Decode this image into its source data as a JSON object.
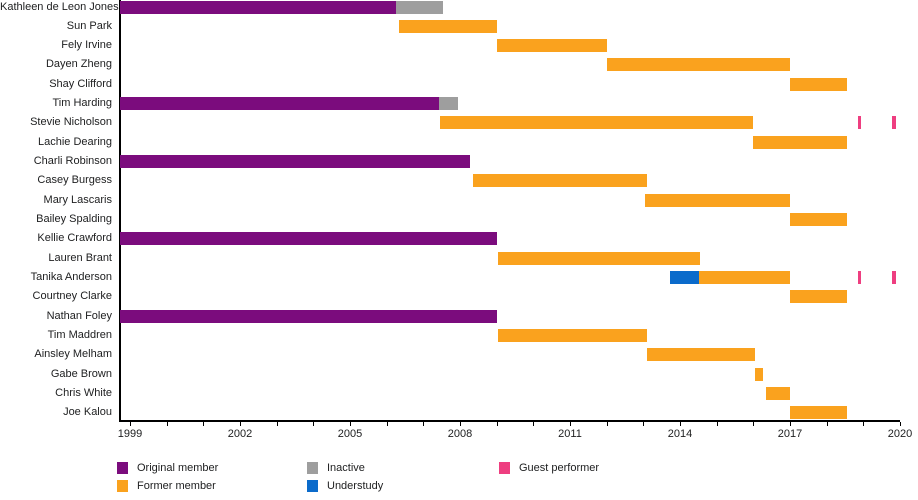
{
  "chart_data": {
    "type": "timeline",
    "title": "",
    "x_axis": {
      "min_year": 1998.73,
      "max_year": 2021.0,
      "tick_interval_years": 1,
      "labeled_ticks": [
        1999,
        2002,
        2005,
        2008,
        2011,
        2014,
        2017,
        2020
      ],
      "grid": false
    },
    "legend": [
      {
        "id": "original",
        "label": "Original member",
        "color": "#7b0c7d",
        "column": 0,
        "row": 0
      },
      {
        "id": "former",
        "label": "Former member",
        "color": "#faa21e",
        "column": 0,
        "row": 1
      },
      {
        "id": "inactive",
        "label": "Inactive",
        "color": "#9e9e9e",
        "column": 1,
        "row": 0
      },
      {
        "id": "understudy",
        "label": "Understudy",
        "color": "#0b6bcb",
        "column": 1,
        "row": 1
      },
      {
        "id": "guest",
        "label": "Guest performer",
        "color": "#ee3e80",
        "column": 2,
        "row": 0
      }
    ],
    "colors": {
      "original": "#7b0c7d",
      "former": "#faa21e",
      "inactive": "#9e9e9e",
      "understudy": "#0b6bcb",
      "guest": "#ee3e80"
    },
    "members": [
      {
        "name": "Kathleen de Leon Jones",
        "segments": [
          {
            "type": "original",
            "start": 1998.73,
            "end": 2006.25
          },
          {
            "type": "inactive",
            "start": 2006.25,
            "end": 2007.54
          }
        ]
      },
      {
        "name": "Sun Park",
        "segments": [
          {
            "type": "former",
            "start": 2006.33,
            "end": 2009.0
          }
        ]
      },
      {
        "name": "Fely Irvine",
        "segments": [
          {
            "type": "former",
            "start": 2009.0,
            "end": 2012.0
          }
        ]
      },
      {
        "name": "Dayen Zheng",
        "segments": [
          {
            "type": "former",
            "start": 2012.0,
            "end": 2017.0
          }
        ]
      },
      {
        "name": "Shay Clifford",
        "segments": [
          {
            "type": "former",
            "start": 2017.0,
            "end": 2018.55
          }
        ]
      },
      {
        "name": "Tim Harding",
        "segments": [
          {
            "type": "original",
            "start": 1998.73,
            "end": 2007.43
          },
          {
            "type": "inactive",
            "start": 2007.43,
            "end": 2007.95
          }
        ]
      },
      {
        "name": "Stevie Nicholson",
        "segments": [
          {
            "type": "former",
            "start": 2007.45,
            "end": 2016.0
          },
          {
            "type": "guest",
            "start": 2018.86,
            "end": 2018.95
          },
          {
            "type": "guest",
            "start": 2019.79,
            "end": 2019.88
          }
        ]
      },
      {
        "name": "Lachie Dearing",
        "segments": [
          {
            "type": "former",
            "start": 2016.0,
            "end": 2018.55
          }
        ]
      },
      {
        "name": "Charli Robinson",
        "segments": [
          {
            "type": "original",
            "start": 1998.73,
            "end": 2008.27
          }
        ]
      },
      {
        "name": "Casey Burgess",
        "segments": [
          {
            "type": "former",
            "start": 2008.35,
            "end": 2013.1
          }
        ]
      },
      {
        "name": "Mary Lascaris",
        "segments": [
          {
            "type": "former",
            "start": 2013.05,
            "end": 2017.0
          }
        ]
      },
      {
        "name": "Bailey Spalding",
        "segments": [
          {
            "type": "former",
            "start": 2017.0,
            "end": 2018.55
          }
        ]
      },
      {
        "name": "Kellie Crawford",
        "segments": [
          {
            "type": "original",
            "start": 1998.73,
            "end": 2009.0
          }
        ]
      },
      {
        "name": "Lauren Brant",
        "segments": [
          {
            "type": "former",
            "start": 2009.03,
            "end": 2014.55
          }
        ]
      },
      {
        "name": "Tanika Anderson",
        "segments": [
          {
            "type": "understudy",
            "start": 2013.73,
            "end": 2014.52
          },
          {
            "type": "former",
            "start": 2014.52,
            "end": 2017.0
          },
          {
            "type": "guest",
            "start": 2018.86,
            "end": 2018.95
          },
          {
            "type": "guest",
            "start": 2019.79,
            "end": 2019.88
          }
        ]
      },
      {
        "name": "Courtney Clarke",
        "segments": [
          {
            "type": "former",
            "start": 2017.0,
            "end": 2018.55
          }
        ]
      },
      {
        "name": "Nathan Foley",
        "segments": [
          {
            "type": "original",
            "start": 1998.73,
            "end": 2009.0
          }
        ]
      },
      {
        "name": "Tim Maddren",
        "segments": [
          {
            "type": "former",
            "start": 2009.03,
            "end": 2013.1
          }
        ]
      },
      {
        "name": "Ainsley Melham",
        "segments": [
          {
            "type": "former",
            "start": 2013.1,
            "end": 2016.04
          }
        ]
      },
      {
        "name": "Gabe Brown",
        "segments": [
          {
            "type": "former",
            "start": 2016.04,
            "end": 2016.27
          }
        ]
      },
      {
        "name": "Chris White",
        "segments": [
          {
            "type": "former",
            "start": 2016.35,
            "end": 2017.0
          }
        ]
      },
      {
        "name": "Joe Kalou",
        "segments": [
          {
            "type": "former",
            "start": 2017.0,
            "end": 2018.55
          }
        ]
      }
    ]
  }
}
